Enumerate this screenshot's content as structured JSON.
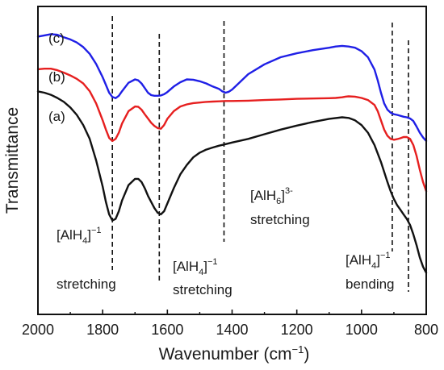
{
  "chart_data": {
    "type": "line",
    "xlabel": "Wavenumber (cm",
    "xlabel_sup": "−1",
    "xlabel_close": ")",
    "ylabel": "Transmittance",
    "xlim": [
      2000,
      800
    ],
    "x_reversed": true,
    "ylim": [
      0,
      100
    ],
    "x_ticks": [
      "2000",
      "1800",
      "1600",
      "1400",
      "1200",
      "1000",
      "800"
    ],
    "grid": false,
    "y_tick_labels": false,
    "series": [
      {
        "name": "(c)",
        "color": "#1f1fe6",
        "x": [
          2000,
          1980,
          1960,
          1940,
          1920,
          1900,
          1880,
          1860,
          1840,
          1820,
          1800,
          1790,
          1780,
          1770,
          1760,
          1750,
          1740,
          1720,
          1700,
          1690,
          1680,
          1670,
          1660,
          1650,
          1640,
          1630,
          1620,
          1610,
          1600,
          1580,
          1560,
          1540,
          1520,
          1500,
          1480,
          1460,
          1440,
          1430,
          1420,
          1410,
          1400,
          1380,
          1350,
          1300,
          1250,
          1200,
          1150,
          1100,
          1080,
          1060,
          1040,
          1020,
          1000,
          980,
          960,
          950,
          940,
          930,
          920,
          910,
          900,
          890,
          880,
          870,
          860,
          850,
          840,
          830,
          820,
          810,
          800
        ],
        "y": [
          90.2,
          90.6,
          91.0,
          90.8,
          90.0,
          89.3,
          88.3,
          86.8,
          84.6,
          81.3,
          77.0,
          74.5,
          72.0,
          70.6,
          70.2,
          71.0,
          72.5,
          75.2,
          76.3,
          76.0,
          75.0,
          73.5,
          72.0,
          71.2,
          71.0,
          71.0,
          71.1,
          71.5,
          72.2,
          74.0,
          75.4,
          76.3,
          76.2,
          75.7,
          75.0,
          74.0,
          73.2,
          72.4,
          72.0,
          72.3,
          73.0,
          75.0,
          78.0,
          81.2,
          83.5,
          84.8,
          85.8,
          86.6,
          87.0,
          87.2,
          87.0,
          86.6,
          85.5,
          83.5,
          79.5,
          76.0,
          72.0,
          68.5,
          66.5,
          65.5,
          65.0,
          64.8,
          64.5,
          64.2,
          64.0,
          63.6,
          62.8,
          61.0,
          59.0,
          57.5,
          56.3
        ]
      },
      {
        "name": "(b)",
        "color": "#e61f1f",
        "x": [
          2000,
          1980,
          1960,
          1940,
          1920,
          1900,
          1880,
          1860,
          1840,
          1820,
          1800,
          1790,
          1780,
          1770,
          1760,
          1750,
          1740,
          1720,
          1700,
          1690,
          1680,
          1670,
          1660,
          1650,
          1640,
          1630,
          1620,
          1610,
          1600,
          1580,
          1560,
          1540,
          1520,
          1500,
          1480,
          1460,
          1440,
          1420,
          1400,
          1350,
          1300,
          1250,
          1200,
          1150,
          1100,
          1080,
          1060,
          1050,
          1040,
          1020,
          1000,
          980,
          960,
          950,
          940,
          930,
          920,
          910,
          900,
          890,
          880,
          870,
          860,
          850,
          840,
          830,
          820,
          810,
          800
        ],
        "y": [
          79.6,
          79.8,
          79.8,
          79.3,
          78.5,
          77.6,
          76.5,
          75.0,
          72.5,
          68.5,
          63.0,
          60.0,
          57.3,
          56.3,
          57.0,
          59.0,
          62.0,
          66.0,
          67.5,
          67.4,
          66.5,
          65.0,
          63.6,
          62.2,
          61.2,
          60.5,
          60.3,
          61.5,
          63.5,
          66.0,
          67.5,
          68.2,
          68.6,
          68.8,
          69.0,
          69.1,
          69.2,
          69.3,
          69.3,
          69.4,
          69.6,
          69.8,
          70.0,
          70.1,
          70.2,
          70.3,
          70.5,
          70.7,
          70.8,
          70.7,
          70.3,
          69.6,
          68.0,
          66.0,
          63.0,
          60.0,
          58.0,
          57.0,
          56.7,
          56.9,
          57.2,
          57.6,
          57.6,
          57.0,
          55.0,
          51.5,
          47.0,
          43.0,
          40.0
        ]
      },
      {
        "name": "(a)",
        "color": "#111111",
        "x": [
          2000,
          1980,
          1960,
          1940,
          1920,
          1900,
          1880,
          1860,
          1840,
          1820,
          1800,
          1790,
          1780,
          1770,
          1760,
          1750,
          1740,
          1720,
          1700,
          1690,
          1680,
          1670,
          1660,
          1650,
          1640,
          1630,
          1620,
          1610,
          1600,
          1580,
          1560,
          1540,
          1520,
          1500,
          1480,
          1460,
          1440,
          1420,
          1400,
          1350,
          1300,
          1250,
          1200,
          1150,
          1100,
          1060,
          1040,
          1020,
          1000,
          980,
          960,
          940,
          920,
          910,
          900,
          890,
          880,
          870,
          860,
          850,
          840,
          830,
          820,
          810,
          800
        ],
        "y": [
          72.4,
          72.0,
          71.3,
          70.3,
          69.0,
          67.2,
          64.8,
          61.5,
          57.0,
          50.0,
          41.5,
          36.5,
          32.5,
          30.5,
          31.0,
          33.5,
          37.0,
          42.0,
          44.0,
          44.0,
          43.0,
          41.0,
          38.5,
          36.5,
          34.5,
          33.0,
          32.5,
          33.5,
          36.0,
          41.0,
          45.5,
          48.5,
          51.0,
          52.5,
          53.5,
          54.2,
          54.8,
          55.3,
          55.8,
          57.0,
          58.5,
          60.0,
          61.3,
          62.5,
          63.5,
          64.0,
          63.8,
          63.0,
          61.5,
          59.0,
          55.0,
          49.5,
          43.0,
          40.0,
          37.5,
          35.5,
          34.0,
          32.5,
          31.0,
          29.0,
          26.0,
          22.5,
          18.5,
          15.5,
          13.5
        ]
      }
    ],
    "dashed_lines": [
      1770,
      1625,
      1425,
      905,
      855
    ],
    "annotations": [
      {
        "main": "[AlH",
        "sub": "4",
        "tail": "]",
        "sup": "−1",
        "line2": "stretching"
      },
      {
        "main": "[AlH",
        "sub": "4",
        "tail": "]",
        "sup": "−1",
        "line2": "stretching"
      },
      {
        "main": "[AlH",
        "sub": "6",
        "tail": "]",
        "sup": "3-",
        "line2": "stretching"
      },
      {
        "main": "[AlH",
        "sub": "4",
        "tail": "]",
        "sup": "−1",
        "line2": "bending"
      }
    ]
  }
}
